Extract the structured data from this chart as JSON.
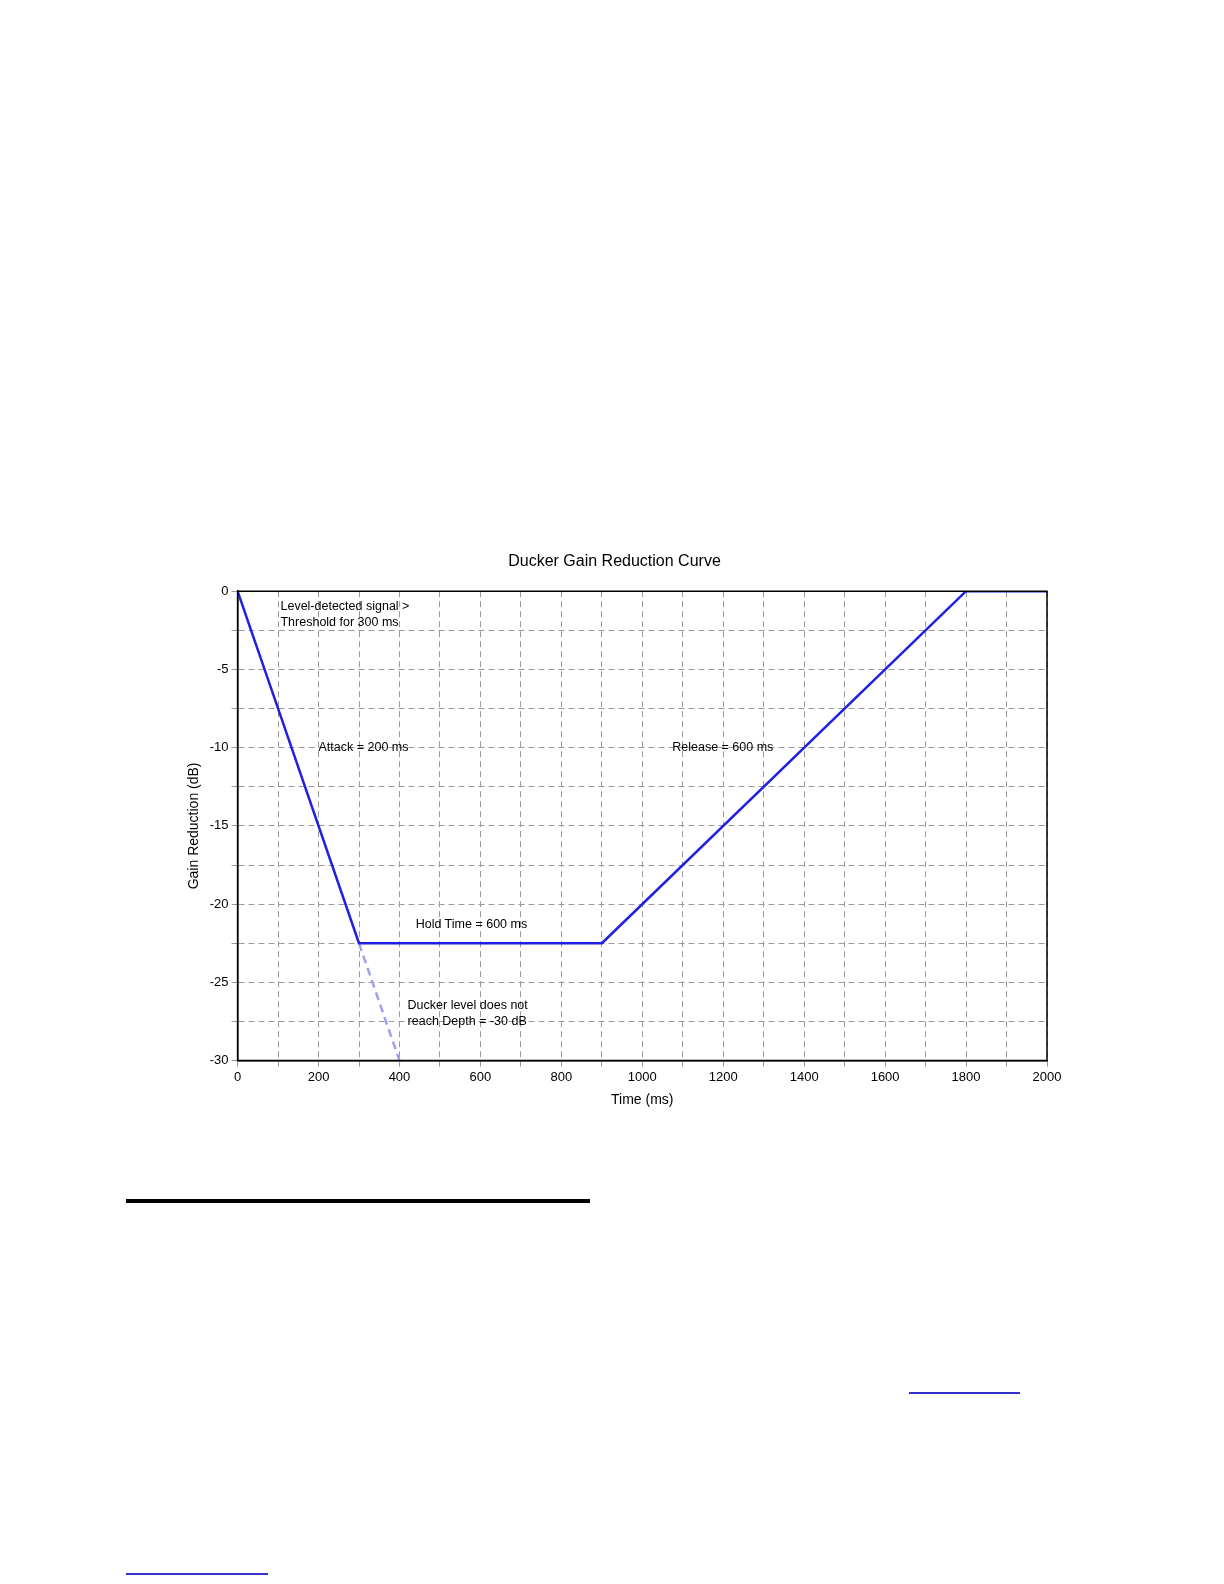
{
  "chart_data": {
    "type": "line",
    "title": "Ducker Gain Reduction Curve",
    "xlabel": "Time (ms)",
    "ylabel": "Gain Reduction (dB)",
    "series": [
      {
        "color": "#1f1fe6",
        "x": [
          0,
          300,
          900,
          1800,
          2000
        ],
        "values": [
          0,
          -22.5,
          -22.5,
          0,
          0
        ],
        "line_style": "solid"
      },
      {
        "color": "#a0a0f0",
        "x": [
          300,
          400
        ],
        "values": [
          -22.5,
          -30
        ],
        "line_style": "dashed"
      }
    ],
    "xlim": [
      0,
      2000
    ],
    "xticks": [
      0,
      {
        "value": 100,
        "label": null
      },
      200,
      {
        "value": 300,
        "label": null
      },
      400,
      {
        "value": 500,
        "label": null
      },
      600,
      {
        "value": 700,
        "label": null
      },
      800,
      {
        "value": 900,
        "label": null
      },
      1000,
      {
        "value": 1100,
        "label": null
      },
      1200,
      {
        "value": 1300,
        "label": null
      },
      1400,
      {
        "value": 1500,
        "label": null
      },
      1600,
      {
        "value": 1700,
        "label": null
      },
      1800,
      {
        "value": 1900,
        "label": null
      },
      2000
    ],
    "ylim": [
      -30,
      0
    ],
    "yticks": [
      -30,
      {
        "value": -27.5,
        "label": null
      },
      -25,
      {
        "value": -22.5,
        "label": null
      },
      -20,
      {
        "value": -17.5,
        "label": null
      },
      -15,
      {
        "value": -12.5,
        "label": null
      },
      -10,
      {
        "value": -7.5,
        "label": null
      },
      -5,
      {
        "value": -2.5,
        "label": null
      },
      0
    ],
    "grid": true,
    "legend": false,
    "marker": "none",
    "annotations": [
      "Level-detected signal >\nThreshold for 300 ms",
      "Attack = 200 ms",
      "Release = 600 ms",
      "Hold Time = 600 ms",
      "Ducker level does not\nreach Depth = -30 dB"
    ]
  }
}
